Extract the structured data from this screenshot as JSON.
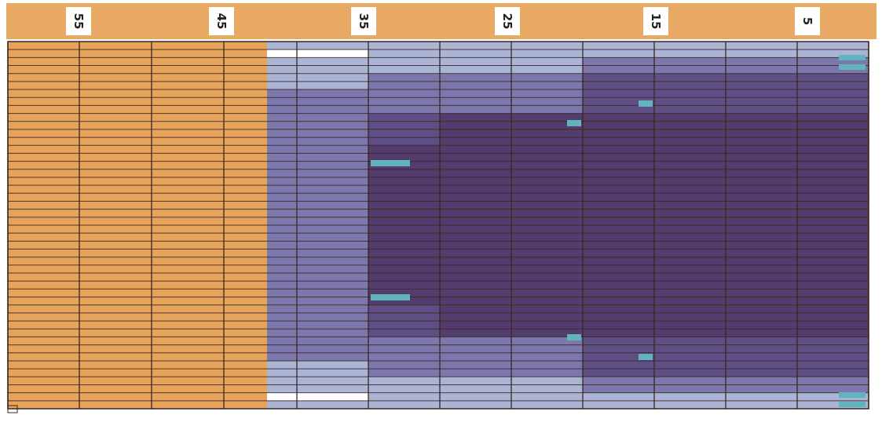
{
  "header": {
    "tick_labels": [
      "55",
      "45",
      "35",
      "25",
      "15",
      "5"
    ]
  },
  "colors": {
    "background": "#ffffff",
    "header": "#e8a965",
    "header_text": "#222222",
    "cell_orange": "#e6a35a",
    "cell_light": "#aab5d6",
    "cell_mid": "#7c78ad",
    "cell_deep": "#5e4f86",
    "cell_darkest": "#533d6e",
    "cell_white": "#ffffff",
    "marker": "#5fb4be",
    "grid_line": "#3a2520"
  }
}
